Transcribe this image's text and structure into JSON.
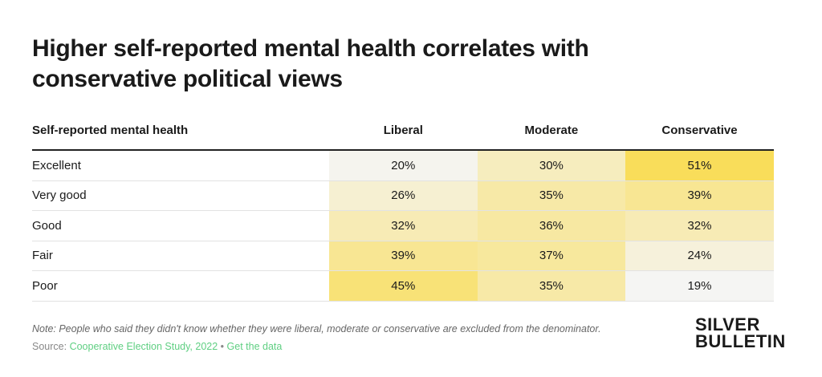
{
  "header": {
    "title": "Higher self-reported mental health correlates with conservative political views"
  },
  "table": {
    "columns": [
      "Self-reported mental health",
      "Liberal",
      "Moderate",
      "Conservative"
    ],
    "rows": [
      {
        "label": "Excellent",
        "values": [
          20,
          30,
          51
        ],
        "value_labels": [
          "20%",
          "30%",
          "51%"
        ]
      },
      {
        "label": "Very good",
        "values": [
          26,
          35,
          39
        ],
        "value_labels": [
          "26%",
          "35%",
          "39%"
        ]
      },
      {
        "label": "Good",
        "values": [
          32,
          36,
          32
        ],
        "value_labels": [
          "32%",
          "36%",
          "32%"
        ]
      },
      {
        "label": "Fair",
        "values": [
          39,
          37,
          24
        ],
        "value_labels": [
          "39%",
          "37%",
          "24%"
        ]
      },
      {
        "label": "Poor",
        "values": [
          45,
          35,
          19
        ],
        "value_labels": [
          "45%",
          "35%",
          "19%"
        ]
      }
    ]
  },
  "footer": {
    "note": "Note: People who said they didn't know whether they were liberal, moderate or conservative are excluded from the denominator.",
    "source_prefix": "Source:",
    "source": "Cooperative Election Study, 2022",
    "separator": "•",
    "link": "Get the data",
    "logo": [
      "SILVER",
      "BULLETIN"
    ]
  }
}
